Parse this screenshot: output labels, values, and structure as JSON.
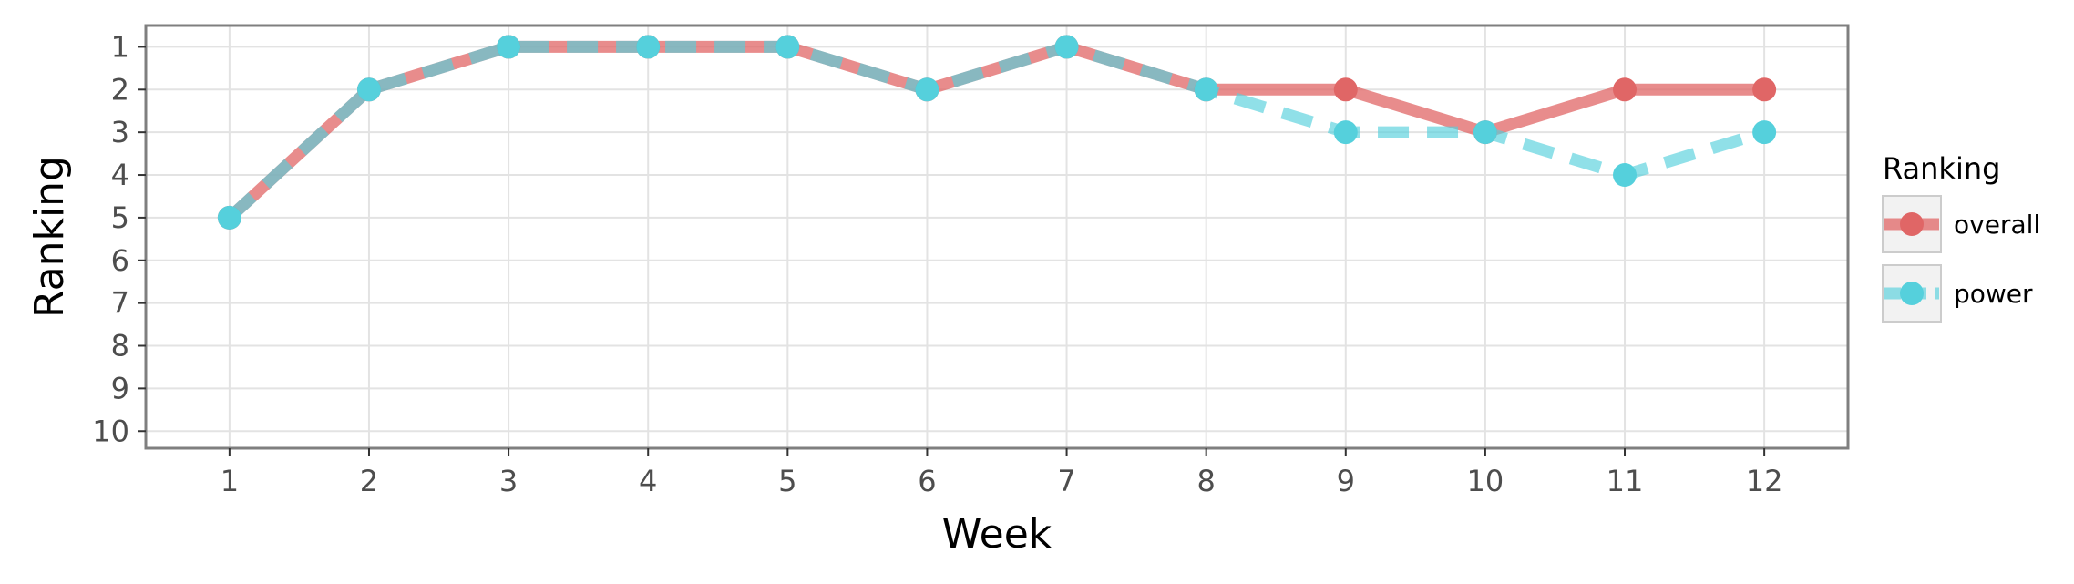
{
  "chart_data": {
    "type": "line",
    "title": "",
    "xlabel": "Week",
    "ylabel": "Ranking",
    "x": [
      1,
      2,
      3,
      4,
      5,
      6,
      7,
      8,
      9,
      10,
      11,
      12
    ],
    "xlim": [
      0.4,
      12.6
    ],
    "ylim": [
      10.4,
      0.5
    ],
    "y_reversed": true,
    "xticks": [
      "1",
      "2",
      "3",
      "4",
      "5",
      "6",
      "7",
      "8",
      "9",
      "10",
      "11",
      "12"
    ],
    "yticks": [
      "1",
      "2",
      "3",
      "4",
      "5",
      "6",
      "7",
      "8",
      "9",
      "10"
    ],
    "grid": true,
    "legend": {
      "title": "Ranking",
      "placement": "right"
    },
    "series": [
      {
        "name": "overall",
        "values": [
          5,
          2,
          1,
          1,
          1,
          2,
          1,
          2,
          2,
          3,
          2,
          2
        ],
        "color": "#E06666",
        "dash": "solid"
      },
      {
        "name": "power",
        "values": [
          5,
          2,
          1,
          1,
          1,
          2,
          1,
          2,
          3,
          3,
          4,
          3
        ],
        "color": "#55D0DC",
        "dash": "dashed"
      }
    ]
  }
}
